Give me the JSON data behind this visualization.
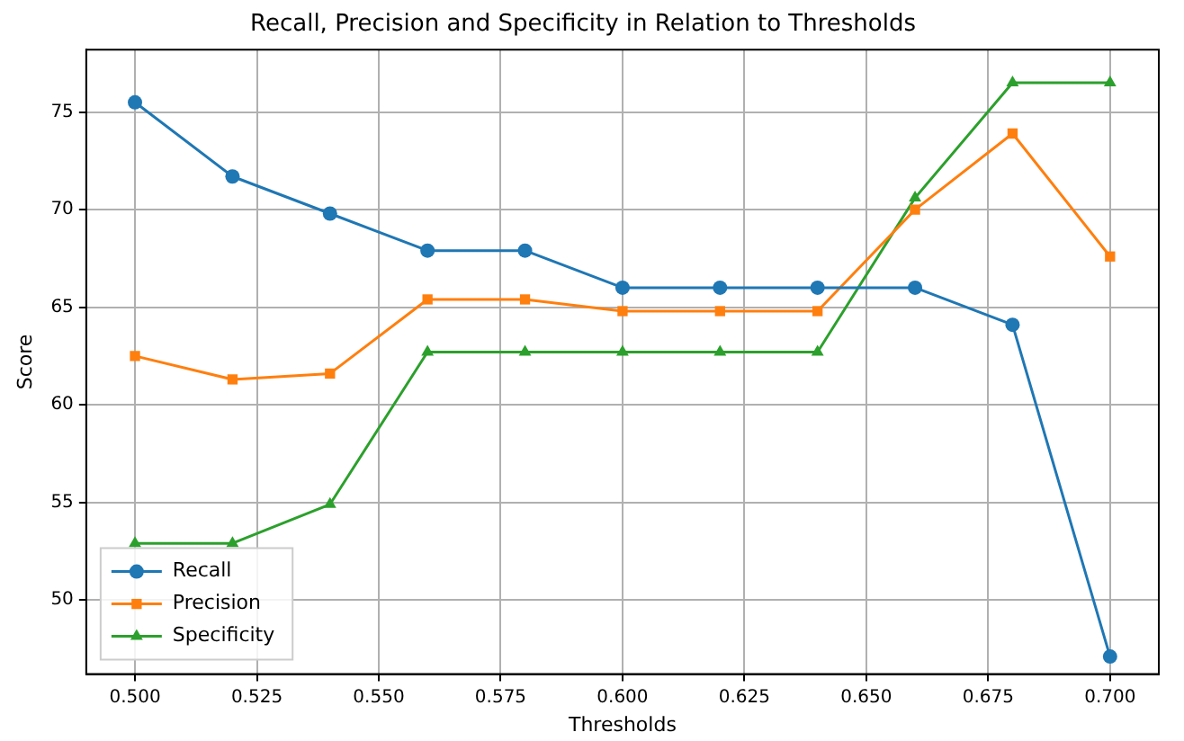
{
  "chart_data": {
    "type": "line",
    "title": "Recall, Precision and Specificity in Relation to Thresholds",
    "xlabel": "Thresholds",
    "ylabel": "Score",
    "x": [
      0.5,
      0.52,
      0.54,
      0.56,
      0.58,
      0.6,
      0.62,
      0.64,
      0.66,
      0.68,
      0.7
    ],
    "series": [
      {
        "name": "Recall",
        "color": "#1f77b4",
        "marker": "circle",
        "values": [
          75.5,
          71.7,
          69.8,
          67.9,
          67.9,
          66.0,
          66.0,
          66.0,
          66.0,
          64.1,
          47.1
        ]
      },
      {
        "name": "Precision",
        "color": "#ff7f0e",
        "marker": "square",
        "values": [
          62.5,
          61.3,
          61.6,
          65.4,
          65.4,
          64.8,
          64.8,
          64.8,
          70.0,
          73.9,
          67.6
        ]
      },
      {
        "name": "Specificity",
        "color": "#2ca02c",
        "marker": "triangle",
        "values": [
          52.9,
          52.9,
          54.9,
          62.7,
          62.7,
          62.7,
          62.7,
          62.7,
          70.6,
          76.5,
          76.5
        ]
      }
    ],
    "xlim": [
      0.49,
      0.71
    ],
    "xticks": [
      {
        "value": 0.5,
        "label": "0.500"
      },
      {
        "value": 0.525,
        "label": "0.525"
      },
      {
        "value": 0.55,
        "label": "0.550"
      },
      {
        "value": 0.575,
        "label": "0.575"
      },
      {
        "value": 0.6,
        "label": "0.600"
      },
      {
        "value": 0.625,
        "label": "0.625"
      },
      {
        "value": 0.65,
        "label": "0.650"
      },
      {
        "value": 0.675,
        "label": "0.675"
      },
      {
        "value": 0.7,
        "label": "0.700"
      }
    ],
    "ylim": [
      46.2,
      78.2
    ],
    "yticks": [
      50,
      55,
      60,
      65,
      70,
      75
    ],
    "grid": true,
    "legend": "bottom left",
    "line_style": "solid"
  }
}
